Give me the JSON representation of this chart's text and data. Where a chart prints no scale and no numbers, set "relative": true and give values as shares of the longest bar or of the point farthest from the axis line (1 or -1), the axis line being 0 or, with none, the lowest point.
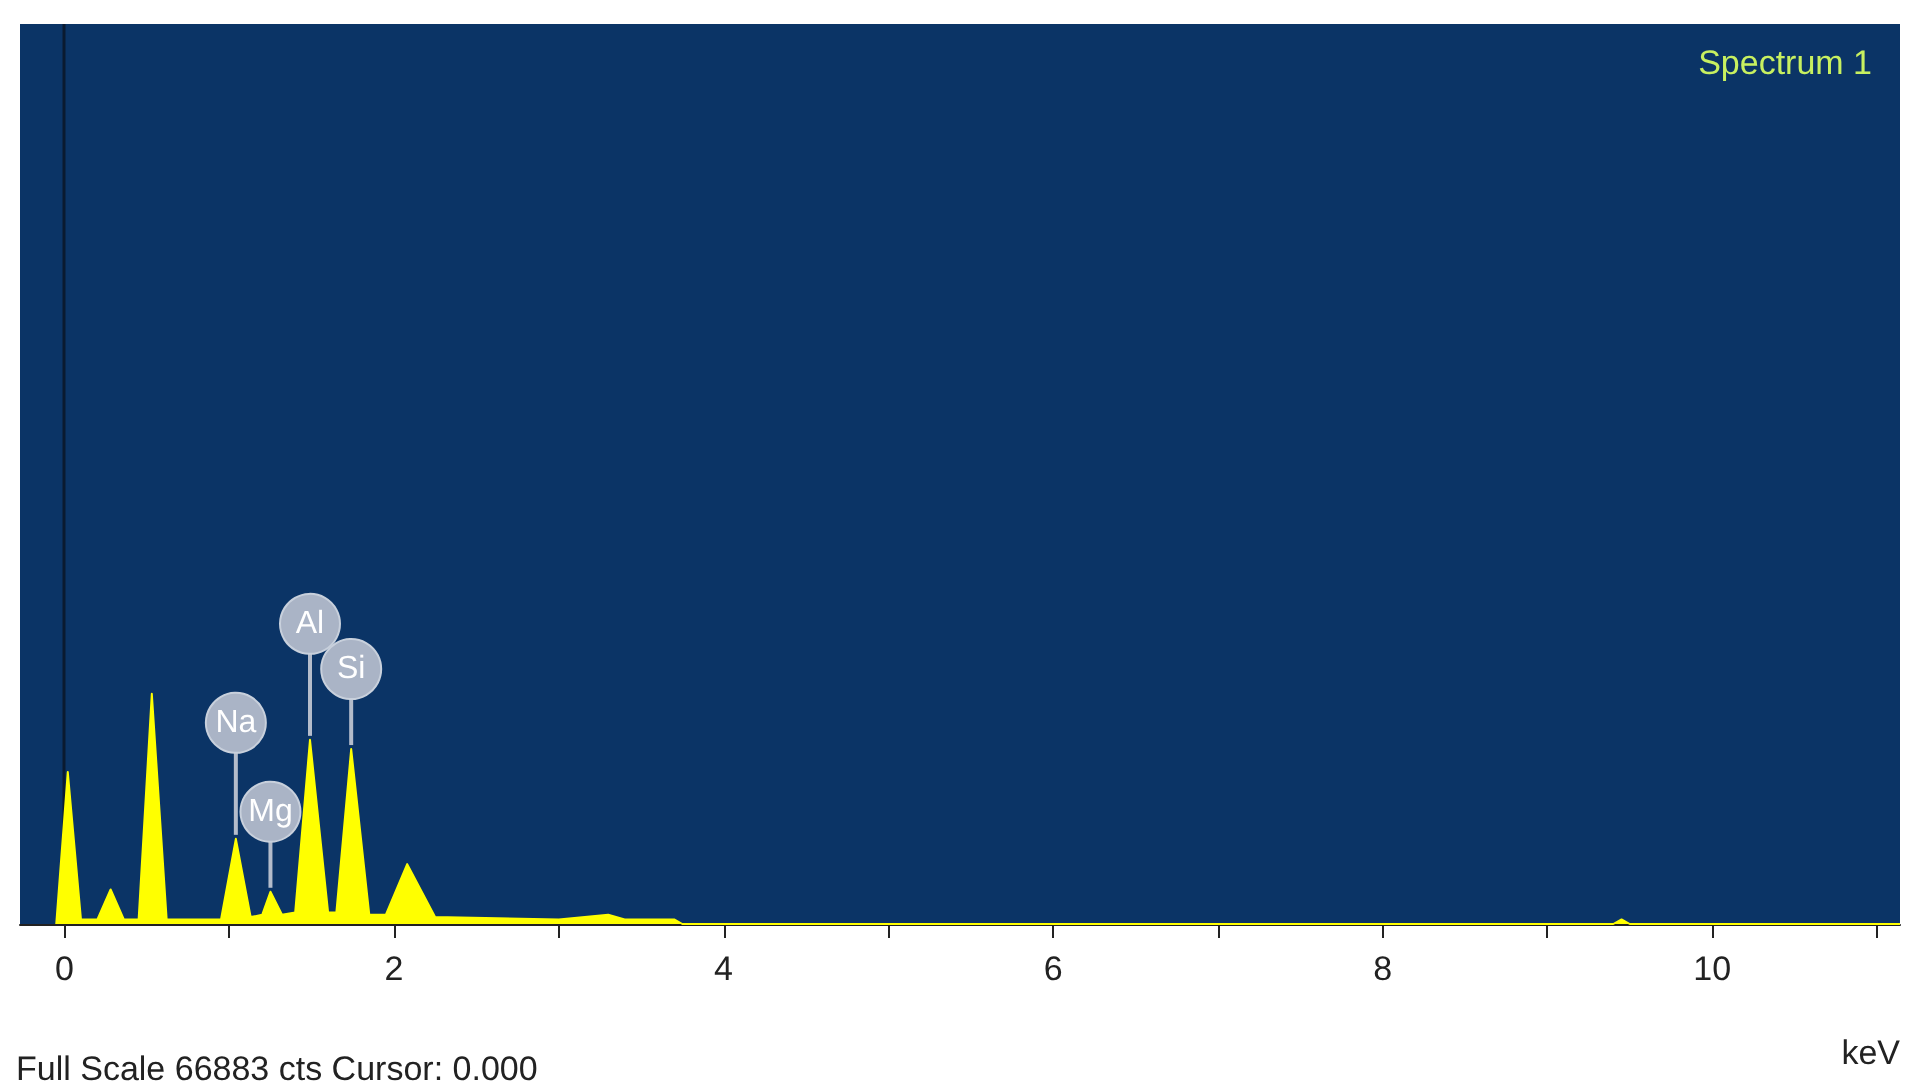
{
  "chart_data": {
    "type": "area",
    "title": "Spectrum 1",
    "xlabel": "keV",
    "relative": true,
    "grid": false,
    "xlim": [
      -0.27,
      11.14
    ],
    "xticks": [
      0,
      {
        "value": 1,
        "label": null
      },
      2,
      {
        "value": 3,
        "label": null
      },
      4,
      {
        "value": 5,
        "label": null
      },
      6,
      {
        "value": 7,
        "label": null
      },
      8,
      {
        "value": 9,
        "label": null
      },
      10,
      {
        "value": 11,
        "label": null
      }
    ],
    "series": [
      {
        "color": "#ffff00",
        "x": [
          -0.05,
          0.02,
          0.1,
          0.2,
          0.28,
          0.36,
          0.45,
          0.53,
          0.62,
          0.95,
          1.04,
          1.13,
          1.2,
          1.25,
          1.32,
          1.4,
          1.49,
          1.6,
          1.65,
          1.74,
          1.85,
          1.95,
          2.08,
          2.25,
          3.0,
          3.3,
          3.4,
          3.7,
          3.75,
          9.4,
          9.45,
          9.5,
          11.14
        ],
        "values": [
          0,
          0.66,
          0.02,
          0.02,
          0.15,
          0.02,
          0.02,
          1,
          0.02,
          0.02,
          0.37,
          0.03,
          0.04,
          0.14,
          0.04,
          0.05,
          0.8,
          0.05,
          0.05,
          0.76,
          0.04,
          0.04,
          0.26,
          0.03,
          0.02,
          0.04,
          0.02,
          0.02,
          0,
          0,
          0.02,
          0,
          0
        ]
      }
    ],
    "ref_lines": [
      {
        "axis": "x",
        "value": 0,
        "color": "#0a1a30"
      }
    ],
    "annotations": [
      {
        "text": "Na",
        "x": 1.04,
        "y": 0.37
      },
      {
        "text": "Mg",
        "x": 1.25,
        "y": 0.14
      },
      {
        "text": "Al",
        "x": 1.49,
        "y": 0.8
      },
      {
        "text": "Si",
        "x": 1.74,
        "y": 0.76
      },
      "Full Scale 66883 cts Cursor: 0.000"
    ]
  }
}
